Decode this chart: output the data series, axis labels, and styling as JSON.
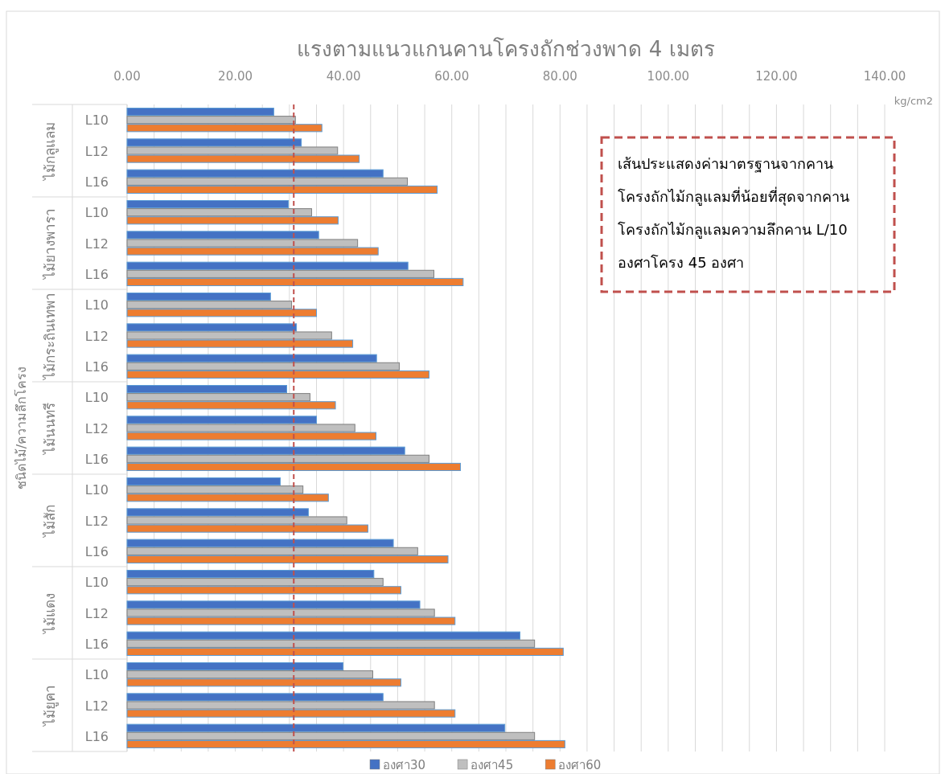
{
  "chart_data": {
    "type": "bar",
    "orientation": "horizontal",
    "title": "แรงตามแนวแกนคานโครงถักช่วงพาด  4 เมตร",
    "ylabel": "ชนิดไม้/ความลึกโครง",
    "categories": [
      "L10",
      "L12",
      "L16",
      "L10",
      "L12",
      "L16",
      "L10",
      "L12",
      "L16",
      "L10",
      "L12",
      "L16",
      "L10",
      "L12",
      "L16",
      "L10",
      "L12",
      "L16",
      "L10",
      "L12",
      "L16"
    ],
    "series": [
      {
        "name": "องศา30",
        "color": "#4472c4",
        "values": [
          27.1,
          32.2,
          47.3,
          29.8,
          35.4,
          51.9,
          26.5,
          31.3,
          46.1,
          29.5,
          35.0,
          51.3,
          28.3,
          33.5,
          49.2,
          45.6,
          54.1,
          72.6,
          39.9,
          47.3,
          69.8
        ]
      },
      {
        "name": "องศา45",
        "color": "#bfbfbf",
        "values": [
          31.1,
          38.9,
          51.8,
          34.1,
          42.6,
          56.7,
          30.4,
          37.8,
          50.3,
          33.8,
          42.1,
          55.8,
          32.5,
          40.6,
          53.7,
          47.3,
          56.8,
          75.3,
          45.4,
          56.8,
          75.3
        ]
      },
      {
        "name": "องศา60",
        "color": "#ed7d31",
        "values": [
          36.0,
          42.9,
          57.3,
          39.0,
          46.4,
          62.1,
          35.0,
          41.7,
          55.8,
          38.5,
          46.0,
          61.6,
          37.2,
          44.5,
          59.3,
          50.6,
          60.6,
          80.6,
          50.6,
          60.6,
          80.9
        ]
      }
    ],
    "xlim": [
      0,
      140
    ],
    "xticks": [
      {
        "value": 0,
        "label": "0.00"
      },
      {
        "value": 5,
        "label": null
      },
      {
        "value": 10,
        "label": null
      },
      {
        "value": 15,
        "label": null
      },
      {
        "value": 20,
        "label": "20.00"
      },
      {
        "value": 25,
        "label": null
      },
      {
        "value": 30,
        "label": null
      },
      {
        "value": 35,
        "label": null
      },
      {
        "value": 40,
        "label": "40.00"
      },
      {
        "value": 45,
        "label": null
      },
      {
        "value": 50,
        "label": null
      },
      {
        "value": 55,
        "label": null
      },
      {
        "value": 60,
        "label": "60.00"
      },
      {
        "value": 65,
        "label": null
      },
      {
        "value": 70,
        "label": null
      },
      {
        "value": 75,
        "label": null
      },
      {
        "value": 80,
        "label": "80.00"
      },
      {
        "value": 85,
        "label": null
      },
      {
        "value": 90,
        "label": null
      },
      {
        "value": 95,
        "label": null
      },
      {
        "value": 100,
        "label": "100.00"
      },
      {
        "value": 105,
        "label": null
      },
      {
        "value": 110,
        "label": null
      },
      {
        "value": 115,
        "label": null
      },
      {
        "value": 120,
        "label": "120.00"
      },
      {
        "value": 125,
        "label": null
      },
      {
        "value": 130,
        "label": null
      },
      {
        "value": 135,
        "label": null
      },
      {
        "value": 140,
        "label": "140.00"
      }
    ],
    "grid": "x",
    "legend": "bottom",
    "ref_lines": [
      {
        "axis": "x",
        "value": 30.8,
        "color": "#c0504d",
        "line_style": "dashed"
      }
    ],
    "annotations": [
      "เส้นประแสดงค่ามาตรฐานจากคาน\nโครงถักไม้กลูแลมที่น้อยที่สุดจากคาน\nโครงถักไม้กลูแลมความลึกคาน L/10\nองศาโครง 45 องศา",
      "kg/cm2",
      "ไม้กลูแลม",
      "ไม้ยางพารา",
      "ไม้กระถินเทพา",
      "ไม้นนทรี",
      "ไม้สัก",
      "ไม้แดง",
      "ไม้ยูคา"
    ]
  }
}
